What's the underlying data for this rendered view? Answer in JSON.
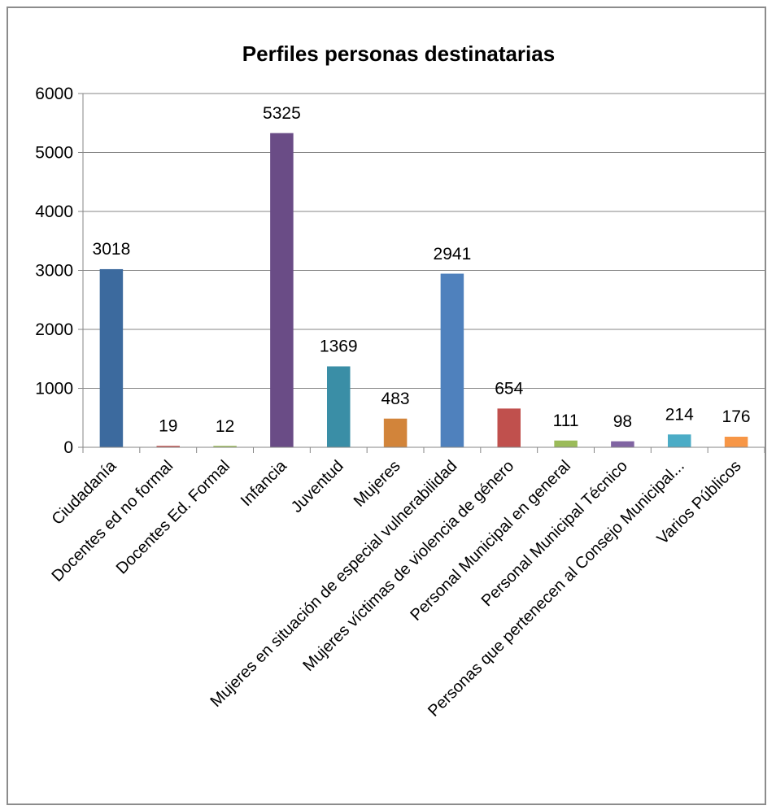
{
  "chart_data": {
    "type": "bar",
    "title": "Perfiles  personas destinatarias",
    "xlabel": "",
    "ylabel": "",
    "ylim": [
      0,
      6000
    ],
    "y_ticks": [
      "0",
      "1000",
      "2000",
      "3000",
      "4000",
      "5000",
      "6000"
    ],
    "y_tick_values": [
      0,
      1000,
      2000,
      3000,
      4000,
      5000,
      6000
    ],
    "grid": true,
    "legend": "none",
    "categories": [
      "Ciudadanía",
      "Docentes ed no formal",
      "Docentes Ed. Formal",
      "Infancia",
      "Juventud",
      "Mujeres",
      "Mujeres en situación de especial vulnerabilidad",
      "Mujeres víctimas de violencia de género",
      "Personal Municipal  en general",
      "Personal Municipal Técnico",
      "Personas que pertenecen al Consejo Municipal...",
      "Varios Públicos"
    ],
    "values": [
      3018,
      19,
      12,
      5325,
      1369,
      483,
      2941,
      654,
      111,
      98,
      214,
      176
    ],
    "value_labels": [
      "3018",
      "19",
      "12",
      "5325",
      "1369",
      "483",
      "2941",
      "654",
      "111",
      "98",
      "214",
      "176"
    ],
    "colors": [
      "#3c6a9e",
      "#c0504d",
      "#9bbb59",
      "#6a4c86",
      "#3a8ea6",
      "#d2843a",
      "#4f81bd",
      "#c0504d",
      "#9bbb59",
      "#8064a2",
      "#4bacc6",
      "#f79646"
    ],
    "grid_color": "#868686",
    "axis_color": "#868686"
  }
}
